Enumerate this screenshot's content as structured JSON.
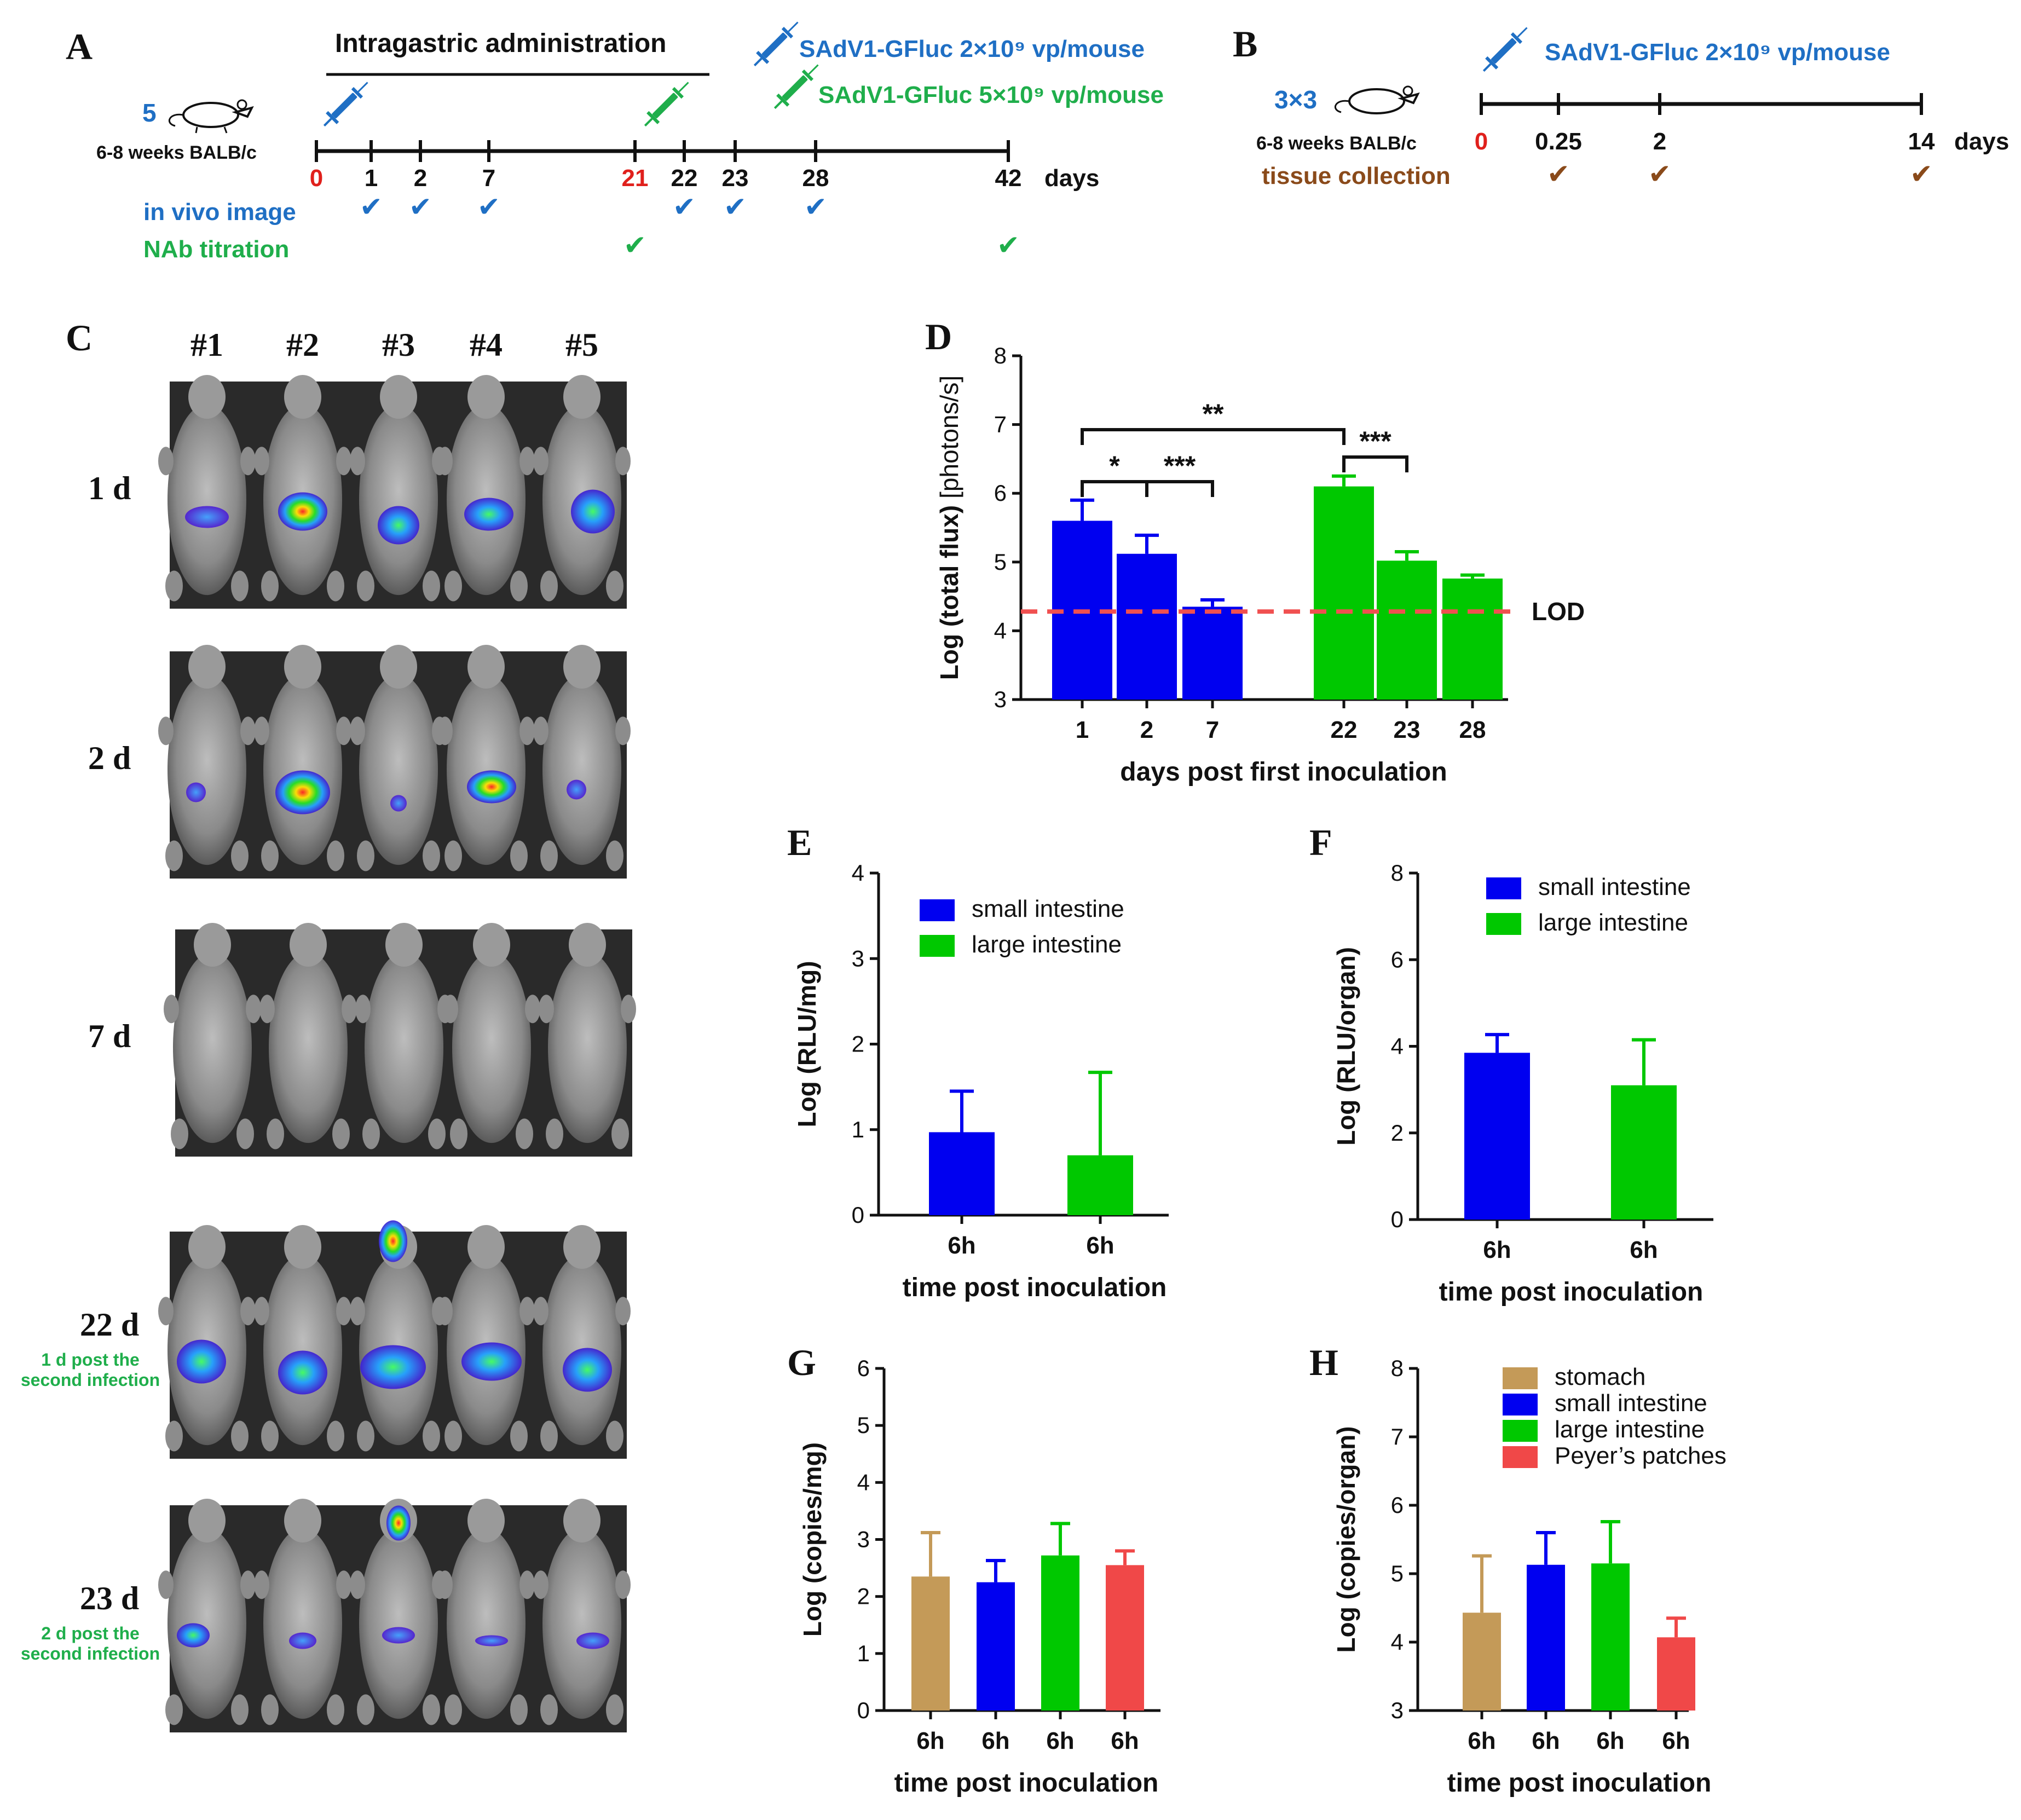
{
  "panel_letters": {
    "A": "A",
    "B": "B",
    "C": "C",
    "D": "D",
    "E": "E",
    "F": "F",
    "G": "G",
    "H": "H"
  },
  "panelA": {
    "header": "Intragastric administration",
    "group_n": "5",
    "strain": "6-8 weeks BALB/c",
    "dose1": "SAdV1-GFluc 2×10⁹ vp/mouse",
    "dose2": "SAdV1-GFluc 5×10⁹ vp/mouse",
    "ticks": [
      "0",
      "1",
      "2",
      "7",
      "21",
      "22",
      "23",
      "28",
      "42"
    ],
    "axis_unit": "days",
    "row1_label": "in vivo image",
    "row2_label": "NAb titration",
    "check": "✔"
  },
  "panelB": {
    "group_n": "3×3",
    "strain": "6-8 weeks BALB/c",
    "dose": "SAdV1-GFluc 2×10⁹ vp/mouse",
    "ticks": [
      "0",
      "0.25",
      "2",
      "14"
    ],
    "axis_unit": "days",
    "row_label": "tissue collection",
    "check": "✔"
  },
  "panelC": {
    "mouse_ids": [
      "#1",
      "#2",
      "#3",
      "#4",
      "#5"
    ],
    "rows": [
      {
        "day": "1 d",
        "note1": "",
        "note2": ""
      },
      {
        "day": "2 d",
        "note1": "",
        "note2": ""
      },
      {
        "day": "7 d",
        "note1": "",
        "note2": ""
      },
      {
        "day": "22 d",
        "note1": "1 d  post the",
        "note2": "second infection"
      },
      {
        "day": "23 d",
        "note1": "2 d  post the",
        "note2": "second infection"
      }
    ]
  },
  "colors": {
    "blue": "#0000f0",
    "green": "#00c800",
    "tan": "#c49a58",
    "red": "#f04848",
    "lod": "#f05050"
  },
  "chart_data": [
    {
      "id": "D",
      "type": "bar",
      "categories": [
        "1",
        "2",
        "7",
        "22",
        "23",
        "28"
      ],
      "values": [
        5.6,
        5.12,
        4.35,
        6.1,
        5.02,
        4.76
      ],
      "errors": [
        0.3,
        0.27,
        0.1,
        0.15,
        0.13,
        0.05
      ],
      "bar_colors": [
        "blue",
        "blue",
        "blue",
        "green",
        "green",
        "green"
      ],
      "ylabel": "Log (total flux) [photons/s]",
      "ylabel_main": "Log (total flux)",
      "ylabel_unit": "[photons/s]",
      "xlabel": "days post first inoculation",
      "ylim": [
        3,
        8
      ],
      "yticks": [
        "3",
        "4",
        "5",
        "6",
        "7",
        "8"
      ],
      "lod": 4.28,
      "lod_label": "LOD",
      "significance": [
        {
          "from": 0,
          "to": 3,
          "label": "**"
        },
        {
          "from": 0,
          "to": 1,
          "label": "*"
        },
        {
          "from": 1,
          "to": 2,
          "label": "***"
        },
        {
          "from": 3,
          "to": 4,
          "label": "***"
        }
      ]
    },
    {
      "id": "E",
      "type": "bar",
      "categories": [
        "6h",
        "6h"
      ],
      "values": [
        0.97,
        0.7
      ],
      "errors": [
        0.48,
        0.97
      ],
      "bar_colors": [
        "blue",
        "green"
      ],
      "ylabel": "Log (RLU/mg)",
      "xlabel": "time post inoculation",
      "ylim": [
        0,
        4
      ],
      "yticks": [
        "0",
        "1",
        "2",
        "3",
        "4"
      ],
      "legend": [
        "small intestine",
        "large intestine"
      ]
    },
    {
      "id": "F",
      "type": "bar",
      "categories": [
        "6h",
        "6h"
      ],
      "values": [
        3.85,
        3.1
      ],
      "errors": [
        0.42,
        1.05
      ],
      "bar_colors": [
        "blue",
        "green"
      ],
      "ylabel": "Log (RLU/organ)",
      "xlabel": "time post inoculation",
      "ylim": [
        0,
        8
      ],
      "yticks": [
        "0",
        "2",
        "4",
        "6",
        "8"
      ],
      "legend": [
        "small intestine",
        "large intestine"
      ]
    },
    {
      "id": "G",
      "type": "bar",
      "categories": [
        "6h",
        "6h",
        "6h",
        "6h"
      ],
      "values": [
        2.35,
        2.25,
        2.72,
        2.55
      ],
      "errors": [
        0.77,
        0.38,
        0.56,
        0.25
      ],
      "bar_colors": [
        "tan",
        "blue",
        "green",
        "red"
      ],
      "ylabel": "Log (copies/mg)",
      "xlabel": "time post inoculation",
      "ylim": [
        0,
        6
      ],
      "yticks": [
        "0",
        "1",
        "2",
        "3",
        "4",
        "5",
        "6"
      ]
    },
    {
      "id": "H",
      "type": "bar",
      "categories": [
        "6h",
        "6h",
        "6h",
        "6h"
      ],
      "values": [
        4.43,
        5.13,
        5.15,
        4.07
      ],
      "errors": [
        0.83,
        0.47,
        0.61,
        0.28
      ],
      "bar_colors": [
        "tan",
        "blue",
        "green",
        "red"
      ],
      "ylabel": "Log (copies/organ)",
      "xlabel": "time post inoculation",
      "ylim": [
        3,
        8
      ],
      "yticks": [
        "3",
        "4",
        "5",
        "6",
        "7",
        "8"
      ],
      "legend": [
        "stomach",
        "small intestine",
        "large intestine",
        "Peyer’s patches"
      ]
    }
  ]
}
